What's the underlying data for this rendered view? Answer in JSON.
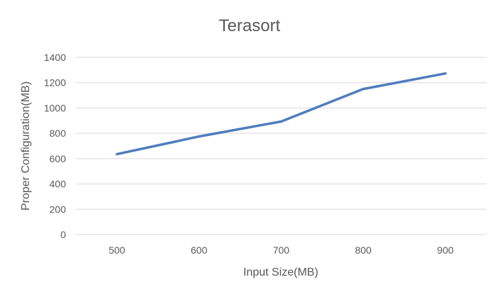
{
  "chart_data": {
    "type": "line",
    "title": "Terasort",
    "xlabel": "Input Size(MB)",
    "ylabel": "Proper Configuration(MB)",
    "categories": [
      "500",
      "600",
      "700",
      "800",
      "900"
    ],
    "series": [
      {
        "values": [
          635,
          775,
          893,
          1150,
          1273
        ]
      }
    ],
    "ylim": [
      0,
      1400
    ],
    "yticks": [
      0,
      200,
      400,
      600,
      800,
      1000,
      1200,
      1400
    ],
    "grid": true,
    "legend": "none",
    "colors": {
      "series": "#4f7dbd",
      "grid": "#d9d9d9",
      "text": "#595959"
    }
  }
}
